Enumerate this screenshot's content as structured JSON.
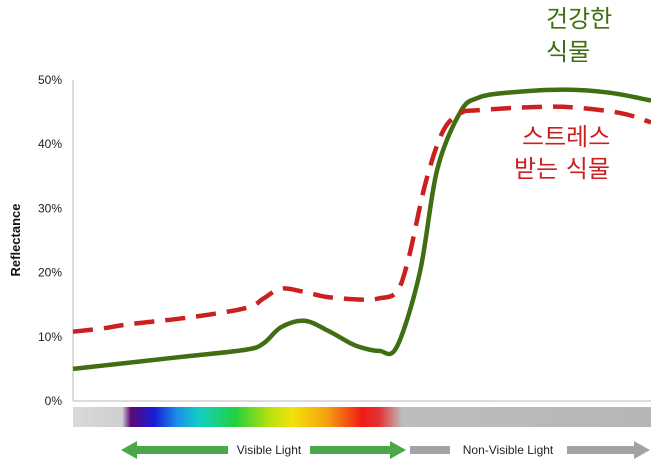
{
  "chart_data": {
    "type": "line",
    "ylabel": "Reflectance",
    "ylim": [
      0,
      50
    ],
    "yticks": [
      "0%",
      "10%",
      "20%",
      "30%",
      "40%",
      "50%"
    ],
    "grid": false,
    "series": [
      {
        "name": "건강한 식물",
        "label_lines": [
          "건강한",
          "식물"
        ],
        "color": "#3f6f12",
        "style": "solid",
        "x": [
          0,
          0.05,
          0.1,
          0.2,
          0.3,
          0.33,
          0.36,
          0.4,
          0.44,
          0.48,
          0.5,
          0.53,
          0.56,
          0.6,
          0.63,
          0.67,
          0.7,
          0.75,
          0.85,
          0.93,
          1.0
        ],
        "values": [
          5.0,
          5.5,
          6.0,
          7.0,
          8.0,
          9.0,
          11.5,
          12.5,
          11.0,
          9.0,
          8.3,
          7.8,
          8.4,
          20.0,
          36.0,
          45.0,
          47.2,
          48.0,
          48.5,
          48.0,
          46.8
        ]
      },
      {
        "name": "스트레스 받는 식물",
        "label_lines": [
          "스트레스",
          "받는 식물"
        ],
        "color": "#cc1f1f",
        "style": "dashed",
        "x": [
          0,
          0.05,
          0.1,
          0.2,
          0.3,
          0.33,
          0.36,
          0.4,
          0.44,
          0.5,
          0.53,
          0.56,
          0.58,
          0.61,
          0.64,
          0.67,
          0.7,
          0.8,
          0.87,
          0.95,
          1.0
        ],
        "values": [
          10.8,
          11.3,
          12.0,
          13.0,
          14.5,
          16.0,
          17.5,
          17.0,
          16.2,
          15.8,
          16.0,
          17.0,
          22.0,
          34.0,
          42.0,
          44.8,
          45.3,
          45.8,
          45.7,
          44.8,
          43.4
        ]
      }
    ],
    "spectrum_bar": {
      "visible_label": "Visible Light",
      "nonvisible_label": "Non-Visible Light"
    }
  },
  "colors": {
    "healthy": "#3f6f12",
    "stressed": "#cc1f1f",
    "axis": "#d0d0d0",
    "arrow_green": "#4aa84a",
    "arrow_gray": "#a3a3a3",
    "spectrum_gray": "#bdbdbd"
  }
}
